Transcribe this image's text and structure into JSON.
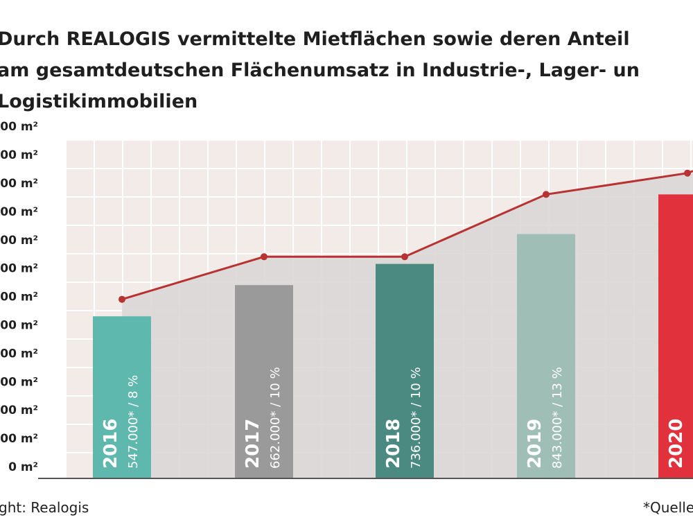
{
  "title_lines": [
    "Durch REALOGIS vermittelte Mietflächen sowie deren Anteil",
    "am gesamtdeutschen Flächenumsatz in Industrie-, Lager- un",
    "Logistikimmobilien"
  ],
  "footer": {
    "left": "ght: Realogis",
    "right": "*Quelle"
  },
  "colors": {
    "grid_bg": "#f2ebe8",
    "grid_line": "#ffffff",
    "area_fill": "#d8d6d5",
    "line": "#b83232",
    "axis": "#555555"
  },
  "chart_data": {
    "type": "bar",
    "title": "Durch REALOGIS vermittelte Mietflächen sowie deren Anteil am gesamtdeutschen Flächenumsatz in Industrie-, Lager- und Logistikimmobilien",
    "y_tick_labels": [
      "0 m²",
      "00 m²",
      "00 m²",
      "00 m²",
      "00 m²",
      "00 m²",
      "00 m²",
      "00 m²",
      "00 m²",
      "00 m²",
      "00 m²",
      "00 m²",
      "00 m²"
    ],
    "y_tick_values": [
      0,
      1,
      2,
      3,
      4,
      5,
      6,
      7,
      8,
      9,
      10,
      11,
      12
    ],
    "ylim": [
      0,
      12
    ],
    "grid": true,
    "categories": [
      "2016",
      "2017",
      "2018",
      "2019",
      "2020"
    ],
    "bars": [
      {
        "year": "2016",
        "value": 5.3,
        "label": "547.000* / 8 %",
        "color": "#5fb8ad"
      },
      {
        "year": "2017",
        "value": 6.4,
        "label": "662.000* / 10 %",
        "color": "#9b9a9a"
      },
      {
        "year": "2018",
        "value": 7.15,
        "label": "736.000* / 10 %",
        "color": "#4b8a80"
      },
      {
        "year": "2019",
        "value": 8.2,
        "label": "843.000* / 13 %",
        "color": "#9fbfb6"
      },
      {
        "year": "2020",
        "value": 9.6,
        "label": "",
        "color": "#e0313c"
      }
    ],
    "line_series": {
      "x": [
        "2016",
        "2017",
        "2018",
        "2019",
        "2020"
      ],
      "values": [
        5.9,
        7.4,
        7.4,
        9.6,
        10.35
      ]
    }
  }
}
